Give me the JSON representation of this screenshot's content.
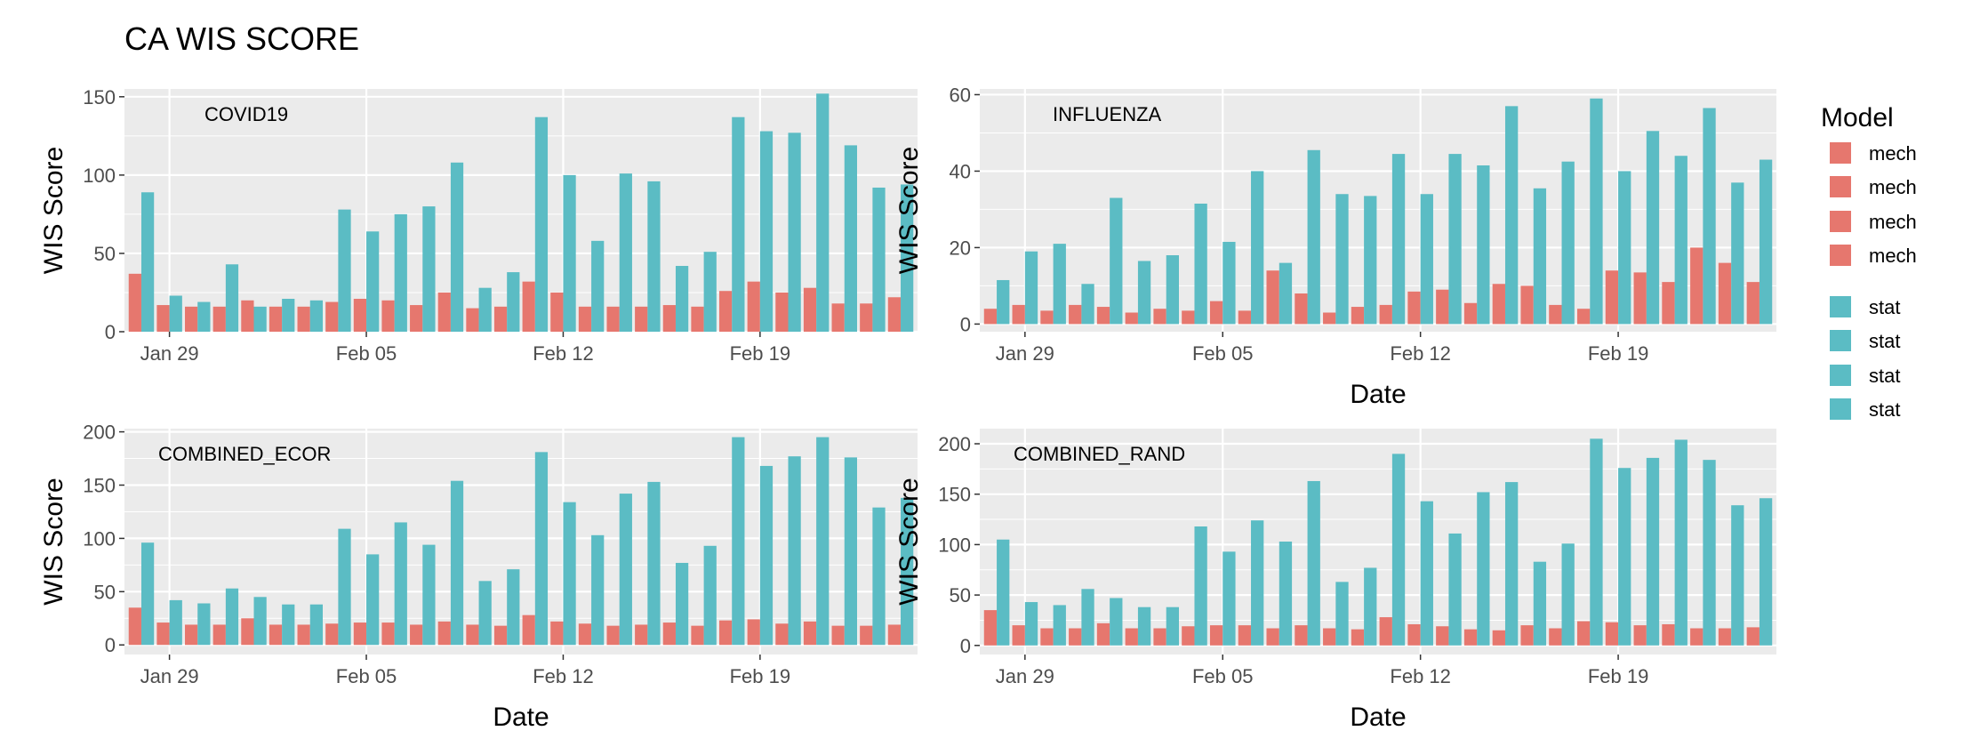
{
  "title": "CA WIS SCORE",
  "legend": {
    "title": "Model",
    "entries": [
      {
        "label": "mech",
        "color": "#E6776E"
      },
      {
        "label": "mech",
        "color": "#E6776E"
      },
      {
        "label": "mech",
        "color": "#E6776E"
      },
      {
        "label": "mech",
        "color": "#E6776E"
      },
      {
        "label": "stat",
        "color": "#5BBCC4"
      },
      {
        "label": "stat",
        "color": "#5BBCC4"
      },
      {
        "label": "stat",
        "color": "#5BBCC4"
      },
      {
        "label": "stat",
        "color": "#5BBCC4"
      }
    ]
  },
  "colors": {
    "mech": "#E6776E",
    "stat": "#5BBCC4",
    "panel_bg": "#EBEBEB",
    "grid": "#FFFFFF"
  },
  "chart_data": [
    {
      "type": "bar",
      "panel": "COVID19",
      "xlabel": "",
      "ylabel": "WIS Score",
      "ylim": [
        0,
        155
      ],
      "yticks": [
        0,
        50,
        100,
        150
      ],
      "x": [
        "Jan 28",
        "Jan 29",
        "Jan 30",
        "Jan 31",
        "Feb 01",
        "Feb 02",
        "Feb 03",
        "Feb 04",
        "Feb 05",
        "Feb 06",
        "Feb 07",
        "Feb 08",
        "Feb 09",
        "Feb 10",
        "Feb 11",
        "Feb 12",
        "Feb 13",
        "Feb 14",
        "Feb 15",
        "Feb 16",
        "Feb 17",
        "Feb 18",
        "Feb 19",
        "Feb 20",
        "Feb 21",
        "Feb 22",
        "Feb 23",
        "Feb 24"
      ],
      "xticks": [
        "Jan 29",
        "Feb 05",
        "Feb 12",
        "Feb 19"
      ],
      "series": [
        {
          "name": "mech",
          "values": [
            37,
            17,
            16,
            16,
            20,
            16,
            16,
            19,
            21,
            20,
            17,
            25,
            15,
            16,
            32,
            25,
            16,
            16,
            16,
            17,
            16,
            26,
            32,
            25,
            28,
            18,
            18,
            22
          ]
        },
        {
          "name": "stat",
          "values": [
            89,
            23,
            19,
            43,
            16,
            21,
            20,
            78,
            64,
            75,
            80,
            108,
            28,
            38,
            137,
            100,
            58,
            101,
            96,
            42,
            51,
            137,
            128,
            127,
            152,
            119,
            92,
            94
          ]
        }
      ]
    },
    {
      "type": "bar",
      "panel": "INFLUENZA",
      "xlabel": "Date",
      "ylabel": "WIS Score",
      "ylim": [
        -2,
        61.5
      ],
      "yticks": [
        0,
        20,
        40,
        60
      ],
      "x": [
        "Jan 28",
        "Jan 29",
        "Jan 30",
        "Jan 31",
        "Feb 01",
        "Feb 02",
        "Feb 03",
        "Feb 04",
        "Feb 05",
        "Feb 06",
        "Feb 07",
        "Feb 08",
        "Feb 09",
        "Feb 10",
        "Feb 11",
        "Feb 12",
        "Feb 13",
        "Feb 14",
        "Feb 15",
        "Feb 16",
        "Feb 17",
        "Feb 18",
        "Feb 19",
        "Feb 20",
        "Feb 21",
        "Feb 22",
        "Feb 23",
        "Feb 24"
      ],
      "xticks": [
        "Jan 29",
        "Feb 05",
        "Feb 12",
        "Feb 19"
      ],
      "series": [
        {
          "name": "mech",
          "values": [
            4,
            5,
            3.5,
            5,
            4.5,
            3,
            4,
            3.5,
            6,
            3.5,
            14,
            8,
            3,
            4.5,
            5,
            8.5,
            9,
            5.5,
            10.5,
            10,
            5,
            4,
            14,
            13.5,
            11,
            20,
            16,
            11
          ]
        },
        {
          "name": "stat",
          "values": [
            11.5,
            19,
            21,
            10.5,
            33,
            16.5,
            18,
            31.5,
            21.5,
            40,
            16,
            45.5,
            34,
            33.5,
            44.5,
            34,
            44.5,
            41.5,
            57,
            35.5,
            42.5,
            59,
            40,
            50.5,
            44,
            56.5,
            37,
            43
          ]
        }
      ]
    },
    {
      "type": "bar",
      "panel": "COMBINED_ECOR",
      "xlabel": "Date",
      "ylabel": "WIS Score",
      "ylim": [
        -9,
        203
      ],
      "yticks": [
        0,
        50,
        100,
        150,
        200
      ],
      "x": [
        "Jan 28",
        "Jan 29",
        "Jan 30",
        "Jan 31",
        "Feb 01",
        "Feb 02",
        "Feb 03",
        "Feb 04",
        "Feb 05",
        "Feb 06",
        "Feb 07",
        "Feb 08",
        "Feb 09",
        "Feb 10",
        "Feb 11",
        "Feb 12",
        "Feb 13",
        "Feb 14",
        "Feb 15",
        "Feb 16",
        "Feb 17",
        "Feb 18",
        "Feb 19",
        "Feb 20",
        "Feb 21",
        "Feb 22",
        "Feb 23",
        "Feb 24"
      ],
      "xticks": [
        "Jan 29",
        "Feb 05",
        "Feb 12",
        "Feb 19"
      ],
      "series": [
        {
          "name": "mech",
          "values": [
            35,
            21,
            19,
            19,
            25,
            19,
            19,
            20,
            21,
            21,
            19,
            22,
            19,
            18,
            28,
            22,
            20,
            18,
            19,
            21,
            18,
            23,
            24,
            20,
            22,
            18,
            18,
            19
          ]
        },
        {
          "name": "stat",
          "values": [
            96,
            42,
            39,
            53,
            45,
            38,
            38,
            109,
            85,
            115,
            94,
            154,
            60,
            71,
            181,
            134,
            103,
            142,
            153,
            77,
            93,
            195,
            168,
            177,
            195,
            176,
            129,
            138
          ]
        }
      ]
    },
    {
      "type": "bar",
      "panel": "COMBINED_RAND",
      "xlabel": "Date",
      "ylabel": "WIS Score",
      "ylim": [
        -9,
        215
      ],
      "yticks": [
        0,
        50,
        100,
        150,
        200
      ],
      "x": [
        "Jan 28",
        "Jan 29",
        "Jan 30",
        "Jan 31",
        "Feb 01",
        "Feb 02",
        "Feb 03",
        "Feb 04",
        "Feb 05",
        "Feb 06",
        "Feb 07",
        "Feb 08",
        "Feb 09",
        "Feb 10",
        "Feb 11",
        "Feb 12",
        "Feb 13",
        "Feb 14",
        "Feb 15",
        "Feb 16",
        "Feb 17",
        "Feb 18",
        "Feb 19",
        "Feb 20",
        "Feb 21",
        "Feb 22",
        "Feb 23",
        "Feb 24"
      ],
      "xticks": [
        "Jan 29",
        "Feb 05",
        "Feb 12",
        "Feb 19"
      ],
      "series": [
        {
          "name": "mech",
          "values": [
            35,
            20,
            17,
            17,
            22,
            17,
            17,
            19,
            20,
            20,
            17,
            20,
            17,
            16,
            28,
            21,
            19,
            16,
            15,
            20,
            17,
            24,
            23,
            20,
            21,
            17,
            17,
            18
          ]
        },
        {
          "name": "stat",
          "values": [
            105,
            43,
            40,
            56,
            47,
            38,
            38,
            118,
            93,
            124,
            103,
            163,
            63,
            77,
            190,
            143,
            111,
            152,
            162,
            83,
            101,
            205,
            176,
            186,
            204,
            184,
            139,
            146
          ]
        }
      ]
    }
  ]
}
